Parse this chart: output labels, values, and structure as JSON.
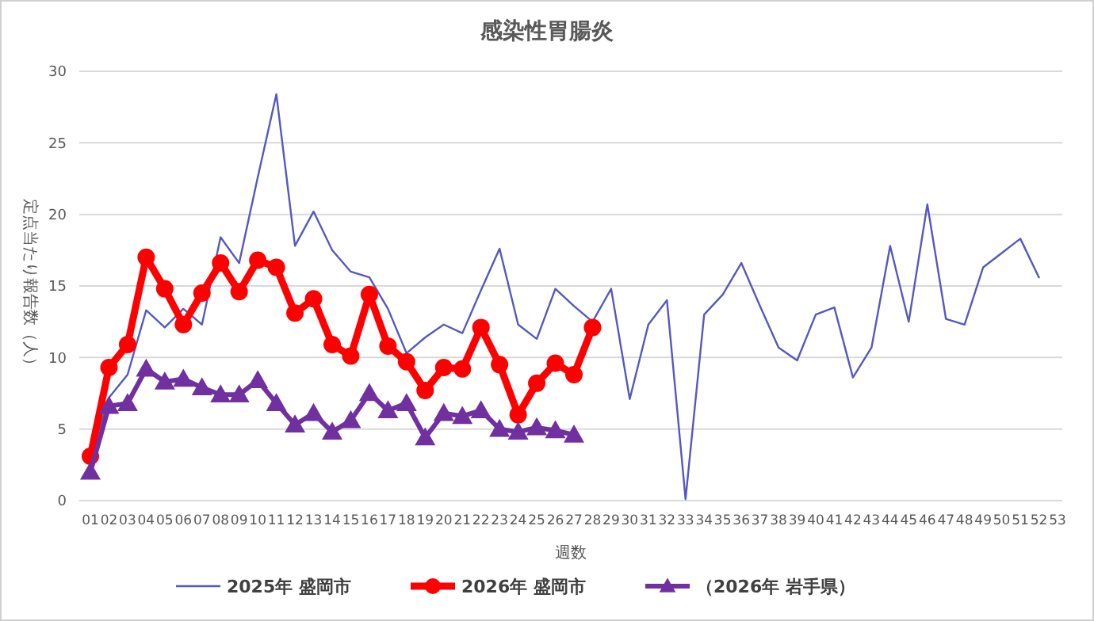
{
  "chart_data": {
    "type": "line",
    "title": "感染性胃腸炎",
    "xlabel": "週数",
    "ylabel": "定点当たり報告数（人）",
    "categories": [
      "01",
      "02",
      "03",
      "04",
      "05",
      "06",
      "07",
      "08",
      "09",
      "10",
      "11",
      "12",
      "13",
      "14",
      "15",
      "16",
      "17",
      "18",
      "19",
      "20",
      "21",
      "22",
      "23",
      "24",
      "25",
      "26",
      "27",
      "28",
      "29",
      "30",
      "31",
      "32",
      "33",
      "34",
      "35",
      "36",
      "37",
      "38",
      "39",
      "40",
      "41",
      "42",
      "43",
      "44",
      "45",
      "46",
      "47",
      "48",
      "49",
      "50",
      "51",
      "52",
      "53"
    ],
    "series": [
      {
        "name": "2025年 盛岡市",
        "color": "#5558c0",
        "marker": "none",
        "values": [
          3.0,
          7.2,
          8.8,
          13.3,
          12.1,
          13.4,
          12.3,
          18.4,
          16.6,
          22.6,
          28.4,
          17.8,
          20.2,
          17.5,
          16.0,
          15.6,
          13.4,
          10.3,
          11.4,
          12.3,
          11.7,
          14.7,
          17.6,
          12.3,
          11.3,
          14.8,
          13.6,
          12.5,
          14.8,
          7.1,
          12.3,
          14.0,
          0.1,
          13.0,
          14.4,
          16.6,
          13.6,
          10.7,
          9.8,
          13.0,
          13.5,
          8.6,
          10.7,
          17.8,
          12.5,
          20.7,
          12.7,
          12.3,
          16.3,
          17.3,
          18.3,
          15.6,
          null
        ]
      },
      {
        "name": "2026年 盛岡市",
        "color": "#ff0000",
        "marker": "circle",
        "values": [
          3.1,
          9.3,
          10.9,
          17.0,
          14.8,
          12.3,
          14.5,
          16.6,
          14.6,
          16.8,
          16.3,
          13.1,
          14.1,
          10.9,
          10.1,
          14.4,
          10.8,
          9.7,
          7.7,
          9.3,
          9.2,
          12.1,
          9.5,
          6.0,
          8.2,
          9.6,
          8.8,
          12.1,
          null,
          null,
          null,
          null,
          null,
          null,
          null,
          null,
          null,
          null,
          null,
          null,
          null,
          null,
          null,
          null,
          null,
          null,
          null,
          null,
          null,
          null,
          null,
          null,
          null
        ]
      },
      {
        "name": "（2026年 岩手県）",
        "color": "#7030a0",
        "marker": "triangle",
        "values": [
          2.0,
          6.6,
          6.8,
          9.2,
          8.3,
          8.5,
          7.9,
          7.4,
          7.4,
          8.4,
          6.8,
          5.3,
          6.1,
          4.8,
          5.6,
          7.5,
          6.3,
          6.8,
          4.4,
          6.1,
          5.9,
          6.3,
          5.0,
          4.8,
          5.1,
          4.9,
          4.6,
          null,
          null,
          null,
          null,
          null,
          null,
          null,
          null,
          null,
          null,
          null,
          null,
          null,
          null,
          null,
          null,
          null,
          null,
          null,
          null,
          null,
          null,
          null,
          null,
          null,
          null
        ]
      }
    ],
    "ylim": [
      0,
      30
    ],
    "yticks": [
      0,
      5,
      10,
      15,
      20,
      25,
      30
    ],
    "grid": "y",
    "legend": "bottom"
  }
}
